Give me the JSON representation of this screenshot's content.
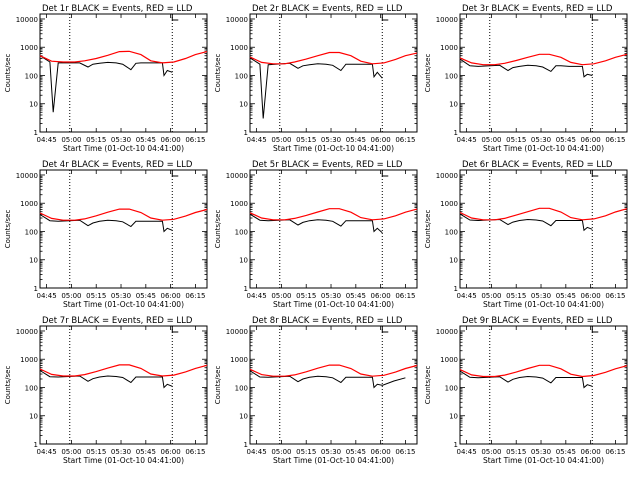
{
  "figure": {
    "colors": {
      "events": "#000000",
      "lld": "#ff0000",
      "axes": "#000000",
      "background": "#ffffff"
    }
  },
  "x_ticks": [
    "04:45",
    "05:00",
    "05:15",
    "05:30",
    "05:45",
    "06:00",
    "06:15"
  ],
  "y_ticks": [
    "1",
    "10",
    "100",
    "1000",
    "10000"
  ],
  "chart_data": [
    {
      "type": "line",
      "title": "Det 1r BLACK = Events, RED = LLD",
      "xlabel": "Start Time (01-Oct-10 04:41:00)",
      "ylabel": "Counts/sec",
      "yscale": "log",
      "ylim": [
        1,
        15000
      ],
      "xlim": [
        "04:41",
        "06:22"
      ],
      "vlines": [
        "04:59",
        "06:01"
      ],
      "series": [
        {
          "name": "Events",
          "x": [
            "04:41",
            "04:47",
            "04:49",
            "04:52",
            "05:05",
            "05:10",
            "05:13",
            "05:17",
            "05:22",
            "05:27",
            "05:31",
            "05:36",
            "05:39",
            "05:42",
            "05:47",
            "05:52",
            "05:55",
            "05:56",
            "05:58",
            "06:01"
          ],
          "y": [
            500,
            300,
            5,
            280,
            280,
            200,
            250,
            270,
            290,
            280,
            250,
            160,
            270,
            280,
            280,
            280,
            280,
            100,
            150,
            130
          ]
        },
        {
          "name": "LLD",
          "x": [
            "04:41",
            "04:48",
            "04:55",
            "05:02",
            "05:08",
            "05:15",
            "05:22",
            "05:29",
            "05:35",
            "05:42",
            "05:48",
            "05:55",
            "06:02",
            "06:09",
            "06:15",
            "06:22"
          ],
          "y": [
            500,
            320,
            300,
            300,
            330,
            400,
            520,
            700,
            720,
            550,
            330,
            280,
            300,
            400,
            550,
            700
          ]
        }
      ]
    },
    {
      "type": "line",
      "title": "Det 2r BLACK = Events, RED = LLD",
      "xlabel": "Start Time (01-Oct-10 04:41:00)",
      "ylabel": "Counts/sec",
      "yscale": "log",
      "ylim": [
        1,
        15000
      ],
      "xlim": [
        "04:41",
        "06:22"
      ],
      "vlines": [
        "04:59",
        "06:01"
      ],
      "series": [
        {
          "name": "Events",
          "x": [
            "04:41",
            "04:47",
            "04:49",
            "04:52",
            "05:05",
            "05:10",
            "05:13",
            "05:17",
            "05:22",
            "05:27",
            "05:31",
            "05:36",
            "05:39",
            "05:42",
            "05:47",
            "05:52",
            "05:55",
            "05:56",
            "05:58",
            "06:01"
          ],
          "y": [
            420,
            250,
            3,
            240,
            270,
            180,
            220,
            240,
            260,
            250,
            230,
            150,
            250,
            250,
            250,
            250,
            250,
            90,
            130,
            80
          ]
        },
        {
          "name": "LLD",
          "x": [
            "04:41",
            "04:48",
            "04:55",
            "05:02",
            "05:08",
            "05:15",
            "05:22",
            "05:29",
            "05:35",
            "05:42",
            "05:48",
            "05:55",
            "06:02",
            "06:09",
            "06:15",
            "06:22"
          ],
          "y": [
            450,
            290,
            260,
            260,
            300,
            380,
            500,
            650,
            650,
            500,
            320,
            260,
            280,
            370,
            500,
            620
          ]
        }
      ]
    },
    {
      "type": "line",
      "title": "Det 3r BLACK = Events, RED = LLD",
      "xlabel": "Start Time (01-Oct-10 04:41:00)",
      "ylabel": "Counts/sec",
      "yscale": "log",
      "ylim": [
        1,
        15000
      ],
      "xlim": [
        "04:41",
        "06:22"
      ],
      "vlines": [
        "04:59",
        "06:01"
      ],
      "series": [
        {
          "name": "Events",
          "x": [
            "04:41",
            "04:47",
            "04:52",
            "05:05",
            "05:10",
            "05:13",
            "05:17",
            "05:22",
            "05:27",
            "05:31",
            "05:36",
            "05:39",
            "05:42",
            "05:47",
            "05:52",
            "05:55",
            "05:56",
            "05:58",
            "06:01"
          ],
          "y": [
            380,
            220,
            210,
            230,
            150,
            190,
            210,
            230,
            220,
            200,
            140,
            220,
            220,
            210,
            210,
            210,
            90,
            110,
            100
          ]
        },
        {
          "name": "LLD",
          "x": [
            "04:41",
            "04:48",
            "04:55",
            "05:02",
            "05:08",
            "05:15",
            "05:22",
            "05:29",
            "05:35",
            "05:42",
            "05:48",
            "05:55",
            "06:02",
            "06:09",
            "06:15",
            "06:22"
          ],
          "y": [
            420,
            280,
            240,
            240,
            270,
            340,
            440,
            560,
            560,
            440,
            290,
            240,
            260,
            330,
            440,
            560
          ]
        }
      ]
    },
    {
      "type": "line",
      "title": "Det 4r BLACK = Events, RED = LLD",
      "xlabel": "Start Time (01-Oct-10 04:41:00)",
      "ylabel": "Counts/sec",
      "yscale": "log",
      "ylim": [
        1,
        15000
      ],
      "xlim": [
        "04:41",
        "06:22"
      ],
      "vlines": [
        "04:59",
        "06:01"
      ],
      "series": [
        {
          "name": "Events",
          "x": [
            "04:41",
            "04:47",
            "04:52",
            "05:05",
            "05:10",
            "05:13",
            "05:17",
            "05:22",
            "05:27",
            "05:31",
            "05:36",
            "05:39",
            "05:42",
            "05:47",
            "05:52",
            "05:55",
            "05:56",
            "05:58",
            "06:01"
          ],
          "y": [
            400,
            240,
            230,
            250,
            160,
            200,
            230,
            250,
            240,
            220,
            150,
            230,
            230,
            230,
            230,
            230,
            100,
            130,
            110
          ]
        },
        {
          "name": "LLD",
          "x": [
            "04:41",
            "04:48",
            "04:55",
            "05:02",
            "05:08",
            "05:15",
            "05:22",
            "05:29",
            "05:35",
            "05:42",
            "05:48",
            "05:55",
            "06:02",
            "06:09",
            "06:15",
            "06:22"
          ],
          "y": [
            450,
            290,
            250,
            250,
            280,
            360,
            480,
            620,
            620,
            470,
            300,
            250,
            270,
            350,
            470,
            600
          ]
        }
      ]
    },
    {
      "type": "line",
      "title": "Det 5r BLACK = Events, RED = LLD",
      "xlabel": "Start Time (01-Oct-10 04:41:00)",
      "ylabel": "Counts/sec",
      "yscale": "log",
      "ylim": [
        1,
        15000
      ],
      "xlim": [
        "04:41",
        "06:22"
      ],
      "vlines": [
        "04:59",
        "06:01"
      ],
      "series": [
        {
          "name": "Events",
          "x": [
            "04:41",
            "04:47",
            "04:52",
            "05:05",
            "05:10",
            "05:13",
            "05:17",
            "05:22",
            "05:27",
            "05:31",
            "05:36",
            "05:39",
            "05:42",
            "05:47",
            "05:52",
            "05:55",
            "05:56",
            "05:58",
            "06:01"
          ],
          "y": [
            410,
            250,
            240,
            260,
            170,
            210,
            240,
            260,
            250,
            230,
            155,
            240,
            240,
            240,
            240,
            240,
            100,
            130,
            90
          ]
        },
        {
          "name": "LLD",
          "x": [
            "04:41",
            "04:48",
            "04:55",
            "05:02",
            "05:08",
            "05:15",
            "05:22",
            "05:29",
            "05:35",
            "05:42",
            "05:48",
            "05:55",
            "06:02",
            "06:09",
            "06:15",
            "06:22"
          ],
          "y": [
            460,
            300,
            260,
            260,
            290,
            370,
            490,
            640,
            640,
            480,
            310,
            260,
            280,
            360,
            480,
            620
          ]
        }
      ]
    },
    {
      "type": "line",
      "title": "Det 6r BLACK = Events, RED = LLD",
      "xlabel": "Start Time (01-Oct-10 04:41:00)",
      "ylabel": "Counts/sec",
      "yscale": "log",
      "ylim": [
        1,
        15000
      ],
      "xlim": [
        "04:41",
        "06:22"
      ],
      "vlines": [
        "04:59",
        "06:01"
      ],
      "series": [
        {
          "name": "Events",
          "x": [
            "04:41",
            "04:47",
            "04:52",
            "05:05",
            "05:10",
            "05:13",
            "05:17",
            "05:22",
            "05:27",
            "05:31",
            "05:36",
            "05:39",
            "05:42",
            "05:47",
            "05:52",
            "05:55",
            "05:56",
            "05:58",
            "06:01"
          ],
          "y": [
            420,
            255,
            245,
            265,
            175,
            215,
            245,
            265,
            255,
            235,
            160,
            245,
            245,
            245,
            245,
            245,
            110,
            140,
            120
          ]
        },
        {
          "name": "LLD",
          "x": [
            "04:41",
            "04:48",
            "04:55",
            "05:02",
            "05:08",
            "05:15",
            "05:22",
            "05:29",
            "05:35",
            "05:42",
            "05:48",
            "05:55",
            "06:02",
            "06:09",
            "06:15",
            "06:22"
          ],
          "y": [
            470,
            300,
            260,
            260,
            290,
            380,
            500,
            660,
            660,
            490,
            310,
            260,
            280,
            360,
            490,
            640
          ]
        }
      ]
    },
    {
      "type": "line",
      "title": "Det 7r BLACK = Events, RED = LLD",
      "xlabel": "Start Time (01-Oct-10 04:41:00)",
      "ylabel": "Counts/sec",
      "yscale": "log",
      "ylim": [
        1,
        15000
      ],
      "xlim": [
        "04:41",
        "06:22"
      ],
      "vlines": [
        "04:59",
        "06:01"
      ],
      "series": [
        {
          "name": "Events",
          "x": [
            "04:41",
            "04:47",
            "04:52",
            "05:05",
            "05:10",
            "05:13",
            "05:17",
            "05:22",
            "05:27",
            "05:31",
            "05:36",
            "05:39",
            "05:42",
            "05:47",
            "05:52",
            "05:55",
            "05:56",
            "05:58",
            "06:01"
          ],
          "y": [
            400,
            240,
            235,
            255,
            165,
            205,
            235,
            255,
            245,
            225,
            150,
            235,
            235,
            235,
            235,
            235,
            100,
            130,
            110
          ]
        },
        {
          "name": "LLD",
          "x": [
            "04:41",
            "04:48",
            "04:55",
            "05:02",
            "05:08",
            "05:15",
            "05:22",
            "05:29",
            "05:35",
            "05:42",
            "05:48",
            "05:55",
            "06:02",
            "06:09",
            "06:15",
            "06:22"
          ],
          "y": [
            450,
            290,
            255,
            255,
            285,
            365,
            485,
            630,
            630,
            475,
            300,
            255,
            275,
            355,
            475,
            610
          ]
        }
      ]
    },
    {
      "type": "line",
      "title": "Det 8r BLACK = Events, RED = LLD",
      "xlabel": "Start Time (01-Oct-10 04:41:00)",
      "ylabel": "Counts/sec",
      "yscale": "log",
      "ylim": [
        1,
        15000
      ],
      "xlim": [
        "04:41",
        "06:22"
      ],
      "vlines": [
        "04:59",
        "06:01"
      ],
      "series": [
        {
          "name": "Events",
          "x": [
            "04:41",
            "04:47",
            "04:52",
            "05:05",
            "05:10",
            "05:13",
            "05:17",
            "05:22",
            "05:27",
            "05:31",
            "05:36",
            "05:39",
            "05:42",
            "05:47",
            "05:52",
            "05:55",
            "05:56",
            "05:58",
            "06:01",
            "06:08",
            "06:15"
          ],
          "y": [
            390,
            235,
            230,
            250,
            160,
            200,
            230,
            250,
            240,
            220,
            150,
            230,
            230,
            230,
            230,
            230,
            100,
            130,
            120,
            170,
            220
          ]
        },
        {
          "name": "LLD",
          "x": [
            "04:41",
            "04:48",
            "04:55",
            "05:02",
            "05:08",
            "05:15",
            "05:22",
            "05:29",
            "05:35",
            "05:42",
            "05:48",
            "05:55",
            "06:02",
            "06:09",
            "06:15",
            "06:22"
          ],
          "y": [
            440,
            285,
            250,
            250,
            280,
            360,
            480,
            620,
            620,
            470,
            300,
            250,
            270,
            350,
            470,
            600
          ]
        }
      ]
    },
    {
      "type": "line",
      "title": "Det 9r BLACK = Events, RED = LLD",
      "xlabel": "Start Time (01-Oct-10 04:41:00)",
      "ylabel": "Counts/sec",
      "yscale": "log",
      "ylim": [
        1,
        15000
      ],
      "xlim": [
        "04:41",
        "06:22"
      ],
      "vlines": [
        "04:59",
        "06:01"
      ],
      "series": [
        {
          "name": "Events",
          "x": [
            "04:41",
            "04:47",
            "04:52",
            "05:05",
            "05:10",
            "05:13",
            "05:17",
            "05:22",
            "05:27",
            "05:31",
            "05:36",
            "05:39",
            "05:42",
            "05:47",
            "05:52",
            "05:55",
            "05:56",
            "05:58",
            "06:01"
          ],
          "y": [
            380,
            230,
            220,
            240,
            155,
            195,
            225,
            245,
            235,
            215,
            145,
            225,
            225,
            225,
            225,
            225,
            100,
            125,
            110
          ]
        },
        {
          "name": "LLD",
          "x": [
            "04:41",
            "04:48",
            "04:55",
            "05:02",
            "05:08",
            "05:15",
            "05:22",
            "05:29",
            "05:35",
            "05:42",
            "05:48",
            "05:55",
            "06:02",
            "06:09",
            "06:15",
            "06:22"
          ],
          "y": [
            430,
            280,
            245,
            245,
            275,
            350,
            470,
            610,
            610,
            460,
            295,
            245,
            265,
            345,
            460,
            590
          ]
        }
      ]
    }
  ]
}
